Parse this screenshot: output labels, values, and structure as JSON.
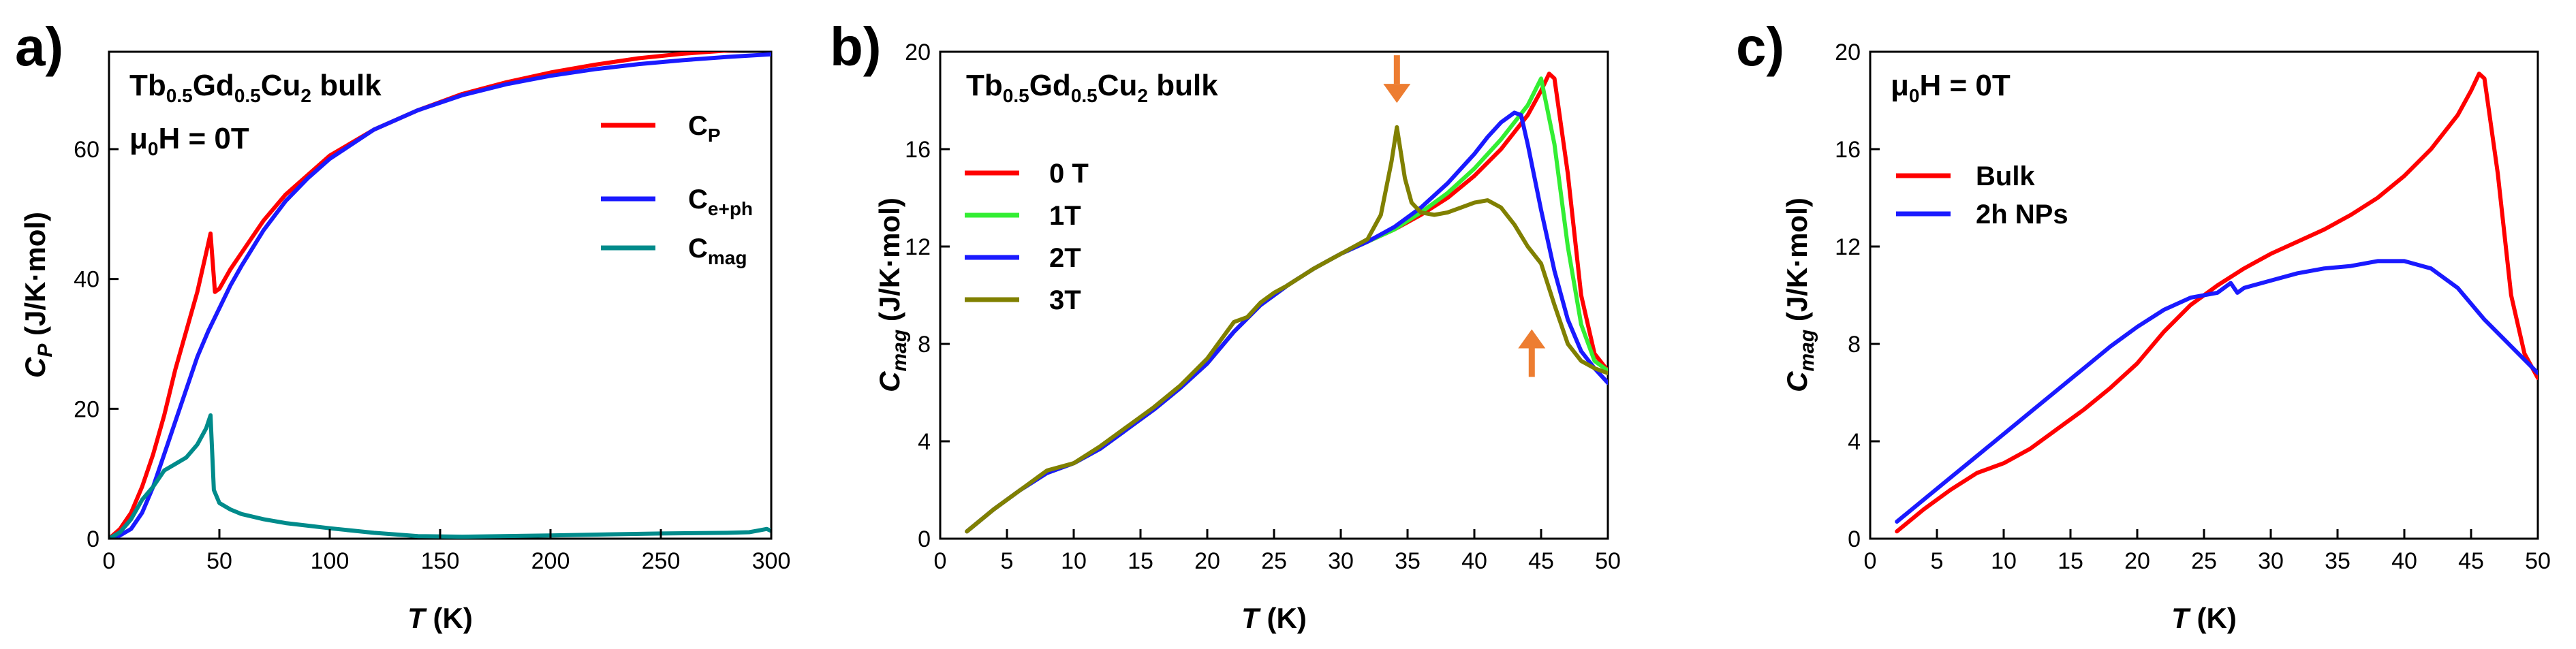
{
  "chart_data": [
    {
      "id": "a",
      "type": "line",
      "panel_label": "a)",
      "annotation": {
        "line1_main": "Tb",
        "line1_sub1": "0.5",
        "line1_mid": "Gd",
        "line1_sub2": "0.5",
        "line1_end": "Cu",
        "line1_sub3": "2",
        "line1_tail": " bulk",
        "line2_mu": "μ",
        "line2_sub": "0",
        "line2_tail": "H = 0T"
      },
      "xlabel": {
        "italic": "T",
        "rest": " (K)"
      },
      "ylabel": {
        "main": "C",
        "sub": "P",
        "rest": " (J/K·mol)"
      },
      "xlim": [
        0,
        300
      ],
      "ylim": [
        0,
        75
      ],
      "xticks": [
        "0",
        "50",
        "100",
        "150",
        "200",
        "250",
        "300"
      ],
      "yticks": [
        "0",
        "20",
        "40",
        "60"
      ],
      "legend_position": "right",
      "series": [
        {
          "name": "C_P",
          "label_main": "C",
          "label_sub": "P",
          "color": "#ff0000",
          "x": [
            0,
            5,
            10,
            15,
            20,
            25,
            30,
            35,
            40,
            44,
            46,
            48,
            50,
            55,
            60,
            70,
            80,
            90,
            100,
            120,
            140,
            160,
            180,
            200,
            220,
            240,
            260,
            280,
            300
          ],
          "y": [
            0,
            1.5,
            4,
            8,
            13,
            19,
            26,
            32,
            38,
            44,
            47,
            38,
            38.5,
            41.5,
            44,
            49,
            53,
            56,
            59,
            63,
            66,
            68.5,
            70.3,
            71.8,
            73,
            74,
            74.7,
            75.2,
            75.5
          ]
        },
        {
          "name": "C_e+ph",
          "label_main": "C",
          "label_sub": "e+ph",
          "color": "#1a1aff",
          "x": [
            0,
            5,
            10,
            15,
            20,
            25,
            30,
            35,
            40,
            45,
            50,
            55,
            60,
            70,
            80,
            90,
            100,
            120,
            140,
            160,
            180,
            200,
            220,
            240,
            260,
            280,
            300
          ],
          "y": [
            0,
            0.5,
            1.5,
            4,
            8,
            13,
            18,
            23,
            28,
            32,
            35.5,
            39,
            42,
            47.5,
            52,
            55.5,
            58.5,
            63,
            66,
            68.3,
            70,
            71.3,
            72.3,
            73.1,
            73.7,
            74.2,
            74.6
          ]
        },
        {
          "name": "C_mag",
          "label_main": "C",
          "label_sub": "mag",
          "color": "#008b8b",
          "x": [
            0,
            5,
            10,
            15,
            20,
            25,
            30,
            35,
            40,
            44,
            46,
            47.5,
            50,
            55,
            60,
            70,
            80,
            90,
            100,
            120,
            140,
            160,
            200,
            250,
            280,
            290,
            295,
            298,
            300
          ],
          "y": [
            0,
            1,
            3,
            6,
            8,
            10.5,
            11.5,
            12.5,
            14.5,
            17,
            19,
            7.5,
            5.5,
            4.5,
            3.8,
            3,
            2.4,
            2,
            1.6,
            0.9,
            0.4,
            0.3,
            0.5,
            0.8,
            0.9,
            1,
            1.3,
            1.5,
            1.2
          ]
        }
      ]
    },
    {
      "id": "b",
      "type": "line",
      "panel_label": "b)",
      "annotation": {
        "line1_main": "Tb",
        "line1_sub1": "0.5",
        "line1_mid": "Gd",
        "line1_sub2": "0.5",
        "line1_end": "Cu",
        "line1_sub3": "2",
        "line1_tail": " bulk"
      },
      "xlabel": {
        "italic": "T",
        "rest": " (K)"
      },
      "ylabel": {
        "main": "C",
        "sub": "mag",
        "rest": " (J/K·mol)"
      },
      "xlim": [
        0,
        50
      ],
      "ylim": [
        0,
        20
      ],
      "xticks": [
        "0",
        "5",
        "10",
        "15",
        "20",
        "25",
        "30",
        "35",
        "40",
        "45",
        "50"
      ],
      "yticks": [
        "0",
        "4",
        "8",
        "12",
        "16",
        "20"
      ],
      "legend_position": "left",
      "arrows": [
        {
          "x": 34.2,
          "y": 17.9,
          "direction": "down",
          "color": "#ed7d31"
        },
        {
          "x": 44.3,
          "y": 8.6,
          "direction": "up",
          "color": "#ed7d31"
        }
      ],
      "series": [
        {
          "name": "0 T",
          "color": "#ff0000",
          "x": [
            2,
            4,
            6,
            8,
            10,
            12,
            14,
            16,
            18,
            20,
            22,
            24,
            26,
            28,
            30,
            32,
            34,
            36,
            38,
            40,
            42,
            44,
            45,
            45.6,
            46,
            47,
            48,
            49,
            50
          ],
          "y": [
            0.3,
            1.2,
            2,
            2.7,
            3.1,
            3.7,
            4.5,
            5.3,
            6.2,
            7.2,
            8.5,
            9.6,
            10.4,
            11.1,
            11.7,
            12.2,
            12.7,
            13.3,
            14,
            14.9,
            16,
            17.4,
            18.4,
            19.1,
            18.9,
            15,
            10,
            7.6,
            6.9
          ]
        },
        {
          "name": "1T",
          "color": "#33ee33",
          "x": [
            2,
            4,
            6,
            8,
            10,
            12,
            14,
            16,
            18,
            20,
            22,
            24,
            26,
            28,
            30,
            32,
            34,
            36,
            38,
            40,
            42,
            44,
            45,
            46,
            47,
            48,
            49,
            50
          ],
          "y": [
            0.3,
            1.2,
            2,
            2.7,
            3.1,
            3.7,
            4.5,
            5.3,
            6.2,
            7.2,
            8.5,
            9.6,
            10.4,
            11.1,
            11.7,
            12.2,
            12.7,
            13.4,
            14.2,
            15.2,
            16.4,
            17.8,
            18.9,
            16.2,
            12,
            8.8,
            7.3,
            6.9
          ]
        },
        {
          "name": "2T",
          "color": "#1a1aff",
          "x": [
            2,
            4,
            6,
            8,
            10,
            12,
            14,
            16,
            18,
            20,
            22,
            24,
            26,
            28,
            30,
            32,
            34,
            36,
            38,
            40,
            41,
            42,
            43,
            43.5,
            44,
            45,
            46,
            47,
            48,
            49,
            50
          ],
          "y": [
            0.3,
            1.2,
            2,
            2.7,
            3.1,
            3.7,
            4.5,
            5.3,
            6.2,
            7.2,
            8.5,
            9.6,
            10.4,
            11.1,
            11.7,
            12.2,
            12.8,
            13.6,
            14.6,
            15.8,
            16.5,
            17.1,
            17.5,
            17.4,
            16.2,
            13.5,
            11,
            9,
            7.7,
            7,
            6.4
          ]
        },
        {
          "name": "3T",
          "color": "#808000",
          "x": [
            2,
            4,
            6,
            8,
            10,
            12,
            14,
            16,
            18,
            20,
            22,
            23,
            24,
            25,
            26,
            28,
            30,
            32,
            33,
            33.8,
            34.2,
            34.8,
            35.3,
            36,
            37,
            38,
            39,
            40,
            41,
            42,
            43,
            44,
            45,
            46,
            47,
            48,
            49,
            50
          ],
          "y": [
            0.3,
            1.2,
            2,
            2.8,
            3.1,
            3.8,
            4.6,
            5.4,
            6.3,
            7.4,
            8.9,
            9.1,
            9.7,
            10.1,
            10.4,
            11.1,
            11.7,
            12.3,
            13.3,
            15.5,
            16.9,
            14.8,
            13.8,
            13.4,
            13.3,
            13.4,
            13.6,
            13.8,
            13.9,
            13.6,
            12.9,
            12,
            11.3,
            9.6,
            8,
            7.3,
            7,
            6.8
          ]
        }
      ]
    },
    {
      "id": "c",
      "type": "line",
      "panel_label": "c)",
      "annotation": {
        "line2_mu": "μ",
        "line2_sub": "0",
        "line2_tail": "H = 0T"
      },
      "xlabel": {
        "italic": "T",
        "rest": " (K)"
      },
      "ylabel": {
        "main": "C",
        "sub": "mag",
        "rest": " (J/K·mol)"
      },
      "xlim": [
        0,
        50
      ],
      "ylim": [
        0,
        20
      ],
      "xticks": [
        "0",
        "5",
        "10",
        "15",
        "20",
        "25",
        "30",
        "35",
        "40",
        "45",
        "50"
      ],
      "yticks": [
        "0",
        "4",
        "8",
        "12",
        "16",
        "20"
      ],
      "legend_position": "left",
      "series": [
        {
          "name": "Bulk",
          "color": "#ff0000",
          "x": [
            2,
            4,
            6,
            8,
            10,
            12,
            14,
            16,
            18,
            20,
            22,
            24,
            26,
            28,
            30,
            32,
            34,
            36,
            38,
            40,
            42,
            44,
            45,
            45.6,
            46,
            47,
            48,
            49,
            50
          ],
          "y": [
            0.3,
            1.2,
            2,
            2.7,
            3.1,
            3.7,
            4.5,
            5.3,
            6.2,
            7.2,
            8.5,
            9.6,
            10.4,
            11.1,
            11.7,
            12.2,
            12.7,
            13.3,
            14,
            14.9,
            16,
            17.4,
            18.4,
            19.1,
            18.9,
            15,
            10,
            7.6,
            6.6
          ]
        },
        {
          "name": "2h NPs",
          "color": "#1a1aff",
          "x": [
            2,
            4,
            6,
            8,
            10,
            12,
            14,
            16,
            18,
            20,
            22,
            24,
            26,
            27,
            27.5,
            28,
            30,
            32,
            34,
            36,
            38,
            40,
            42,
            44,
            46,
            48,
            50
          ],
          "y": [
            0.7,
            1.6,
            2.5,
            3.4,
            4.3,
            5.2,
            6.1,
            7,
            7.9,
            8.7,
            9.4,
            9.9,
            10.1,
            10.5,
            10.1,
            10.3,
            10.6,
            10.9,
            11.1,
            11.2,
            11.4,
            11.4,
            11.1,
            10.3,
            9,
            7.9,
            6.8
          ]
        }
      ]
    }
  ]
}
